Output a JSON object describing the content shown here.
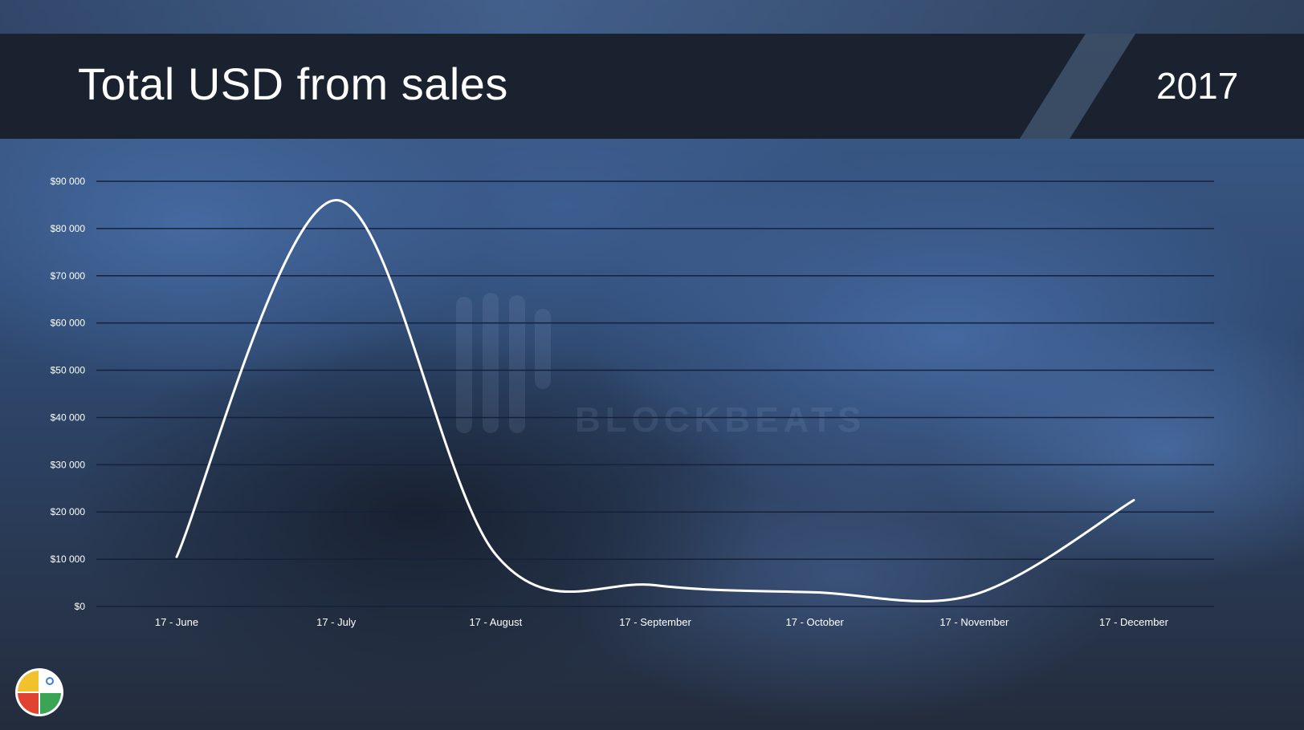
{
  "slide": {
    "title": "Total USD from sales",
    "year": "2017"
  },
  "colors": {
    "banner": "#1a2230",
    "line": "#ffffff",
    "gridline": "#15213a",
    "text": "#ffffff"
  },
  "watermark": {
    "text": "BLOCKBEATS"
  },
  "logo": {
    "icon": "colorful-pie-logo-icon"
  },
  "chart_data": {
    "type": "line",
    "title": "Total USD from sales",
    "xlabel": "",
    "ylabel": "",
    "categories": [
      "17 - June",
      "17 - July",
      "17 - August",
      "17 - September",
      "17 - October",
      "17 - November",
      "17 - December"
    ],
    "values": [
      10500,
      86000,
      11000,
      4500,
      3000,
      2500,
      22500
    ],
    "ylim": [
      0,
      90000
    ],
    "yticks": [
      {
        "value": 0,
        "label": "$0"
      },
      {
        "value": 10000,
        "label": "$10 000"
      },
      {
        "value": 20000,
        "label": "$20 000"
      },
      {
        "value": 30000,
        "label": "$30 000"
      },
      {
        "value": 40000,
        "label": "$40 000"
      },
      {
        "value": 50000,
        "label": "$50 000"
      },
      {
        "value": 60000,
        "label": "$60 000"
      },
      {
        "value": 70000,
        "label": "$70 000"
      },
      {
        "value": 80000,
        "label": "$80 000"
      },
      {
        "value": 90000,
        "label": "$90 000"
      }
    ],
    "grid": true,
    "smooth": true,
    "legend": "none"
  }
}
